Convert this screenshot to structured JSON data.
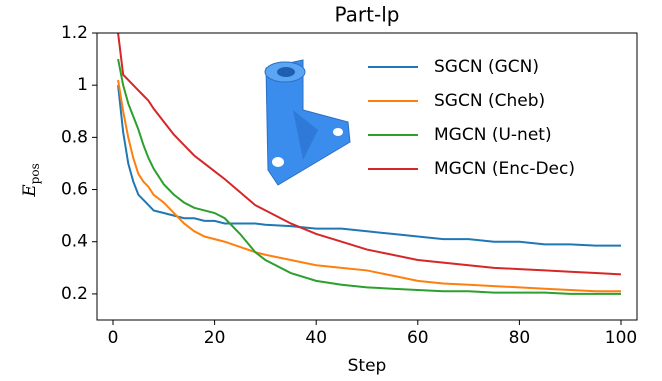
{
  "chart_data": {
    "type": "line",
    "title": "Part-lp",
    "x_label": "Step",
    "y_label": "E",
    "y_label_sub": "pos",
    "x": [
      1,
      2,
      3,
      4,
      5,
      6,
      7,
      8,
      10,
      12,
      14,
      16,
      18,
      20,
      22,
      25,
      28,
      30,
      35,
      40,
      45,
      50,
      55,
      60,
      65,
      70,
      75,
      80,
      85,
      90,
      95,
      100
    ],
    "series": [
      {
        "name": "SGCN (GCN)",
        "color": "#1f77b4",
        "values": [
          1.0,
          0.82,
          0.7,
          0.63,
          0.58,
          0.56,
          0.54,
          0.52,
          0.51,
          0.5,
          0.49,
          0.49,
          0.48,
          0.48,
          0.47,
          0.47,
          0.47,
          0.465,
          0.46,
          0.45,
          0.45,
          0.44,
          0.43,
          0.42,
          0.41,
          0.41,
          0.4,
          0.4,
          0.39,
          0.39,
          0.385,
          0.385
        ]
      },
      {
        "name": "SGCN (Cheb)",
        "color": "#ff7f0e",
        "values": [
          1.02,
          0.9,
          0.8,
          0.72,
          0.66,
          0.63,
          0.61,
          0.58,
          0.55,
          0.51,
          0.47,
          0.44,
          0.42,
          0.41,
          0.4,
          0.38,
          0.36,
          0.35,
          0.33,
          0.31,
          0.3,
          0.29,
          0.27,
          0.25,
          0.24,
          0.235,
          0.23,
          0.225,
          0.22,
          0.215,
          0.21,
          0.21
        ]
      },
      {
        "name": "MGCN (U-net)",
        "color": "#2ca02c",
        "values": [
          1.1,
          1.0,
          0.93,
          0.88,
          0.83,
          0.77,
          0.72,
          0.68,
          0.62,
          0.58,
          0.55,
          0.53,
          0.52,
          0.51,
          0.49,
          0.43,
          0.36,
          0.33,
          0.28,
          0.25,
          0.235,
          0.225,
          0.22,
          0.215,
          0.21,
          0.21,
          0.205,
          0.205,
          0.205,
          0.2,
          0.2,
          0.2
        ]
      },
      {
        "name": "MGCN (Enc-Dec)",
        "color": "#d62728",
        "values": [
          1.2,
          1.04,
          1.02,
          1.0,
          0.98,
          0.96,
          0.94,
          0.91,
          0.86,
          0.81,
          0.77,
          0.73,
          0.7,
          0.67,
          0.64,
          0.59,
          0.54,
          0.52,
          0.47,
          0.43,
          0.4,
          0.37,
          0.35,
          0.33,
          0.32,
          0.31,
          0.3,
          0.295,
          0.29,
          0.285,
          0.28,
          0.275
        ]
      }
    ],
    "xlim": [
      -3.15,
      103.15
    ],
    "ylim": [
      0.1,
      1.2
    ],
    "xticks": [
      0,
      20,
      40,
      60,
      80,
      100
    ],
    "yticks": [
      0.2,
      0.4,
      0.6,
      0.8,
      1.0,
      1.2
    ],
    "legend": "upper right"
  }
}
